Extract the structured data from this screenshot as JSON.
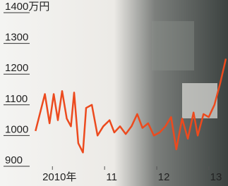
{
  "chart_data": {
    "type": "line",
    "x": [
      2009.54,
      2009.72,
      2009.81,
      2009.89,
      2009.97,
      2010.05,
      2010.14,
      2010.22,
      2010.28,
      2010.36,
      2010.45,
      2010.51,
      2010.62,
      2010.73,
      2010.84,
      2010.96,
      2011.05,
      2011.16,
      2011.27,
      2011.38,
      2011.49,
      2011.59,
      2011.7,
      2011.81,
      2011.92,
      2012.03,
      2012.14,
      2012.24,
      2012.35,
      2012.46,
      2012.57,
      2012.65,
      2012.76,
      2012.86,
      2012.97,
      2013.08,
      2013.19
    ],
    "values": [
      1015,
      1135,
      1040,
      1135,
      1050,
      1145,
      1055,
      1030,
      1140,
      975,
      945,
      1090,
      1100,
      1000,
      1030,
      1050,
      1010,
      1030,
      1005,
      1030,
      1070,
      1025,
      1040,
      1000,
      1010,
      1030,
      1060,
      955,
      1055,
      990,
      1075,
      1000,
      1070,
      1060,
      1100,
      1170,
      1250
    ],
    "color": "#ec4a1e",
    "xlim": [
      2008.86,
      2013.23
    ],
    "xticks": [
      {
        "value": 2010,
        "label": "2010年"
      },
      {
        "value": 2011,
        "label": "11"
      },
      {
        "value": 2012,
        "label": "12"
      },
      {
        "value": 2013,
        "label": "13"
      }
    ],
    "ylim": [
      900,
      1400
    ],
    "yticks": [
      900,
      1000,
      1100,
      1200,
      1300,
      {
        "value": 1400,
        "label": "1400万円"
      }
    ]
  }
}
